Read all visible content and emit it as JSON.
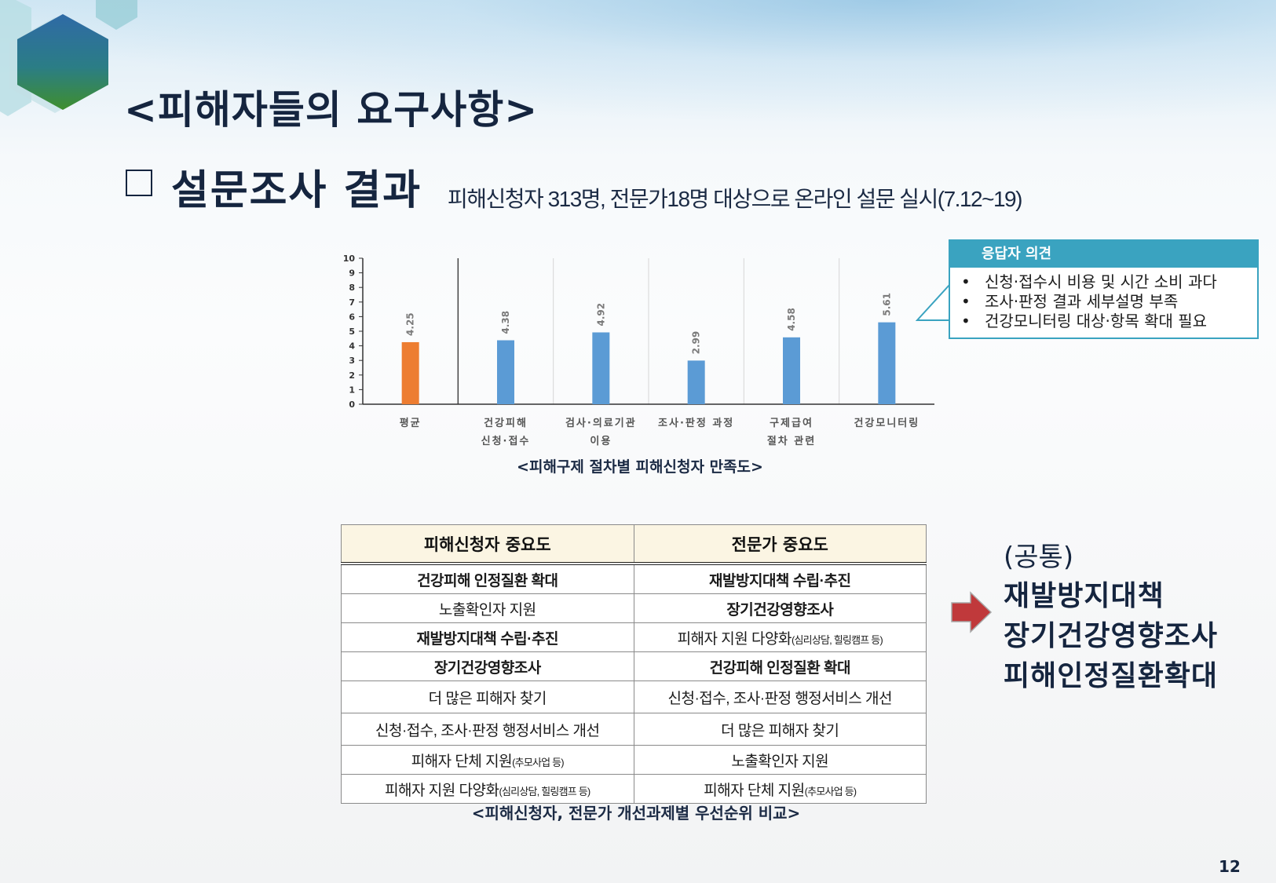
{
  "slide": {
    "title": "<피해자들의 요구사항>",
    "subtitle": "설문조사 결과",
    "survey_note": "피해신청자 313명, 전문가18명 대상으로 온라인 설문 실시(7.12~19)",
    "page_number": "12"
  },
  "chart_data": {
    "type": "bar",
    "title": "<피해구제 절차별 피해신청자 만족도>",
    "categories": [
      [
        "평균"
      ],
      [
        "건강피해",
        "신청·접수"
      ],
      [
        "검사·의료기관",
        "이용"
      ],
      [
        "조사·판정 과정"
      ],
      [
        "구제급여",
        "절차 관련"
      ],
      [
        "건강모니터링"
      ]
    ],
    "values": [
      4.25,
      4.38,
      4.92,
      2.99,
      4.58,
      5.61
    ],
    "value_labels": [
      "4.25",
      "4.38",
      "4.92",
      "2.99",
      "4.58",
      "5.61"
    ],
    "colors": [
      "#ed7d31",
      "#5b9bd5",
      "#5b9bd5",
      "#5b9bd5",
      "#5b9bd5",
      "#5b9bd5"
    ],
    "ylim": [
      0,
      10
    ],
    "yticks": [
      "0",
      "1",
      "2",
      "3",
      "4",
      "5",
      "6",
      "7",
      "8",
      "9",
      "10"
    ],
    "grid": "vertical separators"
  },
  "opinion": {
    "header": "응답자 의견",
    "items": [
      "신청·접수시 비용 및 시간 소비 과다",
      "조사·판정 결과 세부설명 부족",
      "건강모니터링 대상·항목 확대 필요"
    ],
    "color": "#3aa3c0"
  },
  "table": {
    "headers": [
      "피해신청자 중요도",
      "전문가 중요도"
    ],
    "rows": [
      [
        {
          "main": "건강피해 인정질환 확대",
          "note": "",
          "bold": true
        },
        {
          "main": "재발방지대책 수립·추진",
          "note": "",
          "bold": true
        }
      ],
      [
        {
          "main": "노출확인자 지원",
          "note": "",
          "bold": false
        },
        {
          "main": "장기건강영향조사",
          "note": "",
          "bold": true
        }
      ],
      [
        {
          "main": "재발방지대책 수립·추진",
          "note": "",
          "bold": true
        },
        {
          "main": "피해자 지원 다양화",
          "note": "(심리상담, 힐링캠프 등)",
          "bold": false
        }
      ],
      [
        {
          "main": "장기건강영향조사",
          "note": "",
          "bold": true
        },
        {
          "main": "건강피해 인정질환 확대",
          "note": "",
          "bold": true
        }
      ],
      [
        {
          "main": "더 많은 피해자 찾기",
          "note": "",
          "bold": false
        },
        {
          "main": "신청·접수, 조사·판정 행정서비스 개선",
          "note": "",
          "bold": false
        }
      ],
      [
        {
          "main": "신청·접수, 조사·판정 행정서비스 개선",
          "note": "",
          "bold": false
        },
        {
          "main": "더 많은 피해자 찾기",
          "note": "",
          "bold": false
        }
      ],
      [
        {
          "main": "피해자 단체 지원",
          "note": "(추모사업 등)",
          "bold": false
        },
        {
          "main": "노출확인자 지원",
          "note": "",
          "bold": false
        }
      ],
      [
        {
          "main": "피해자 지원 다양화",
          "note": "(심리상담, 힐링캠프 등)",
          "bold": false
        },
        {
          "main": "피해자 단체 지원",
          "note": "(추모사업 등)",
          "bold": false
        }
      ]
    ],
    "caption": "<피해신청자, 전문가 개선과제별 우선순위 비교>"
  },
  "common": {
    "label": "(공통)",
    "items": [
      "재발방지대책",
      "장기건강영향조사",
      "피해인정질환확대"
    ],
    "arrow_color": "#c0393b"
  }
}
